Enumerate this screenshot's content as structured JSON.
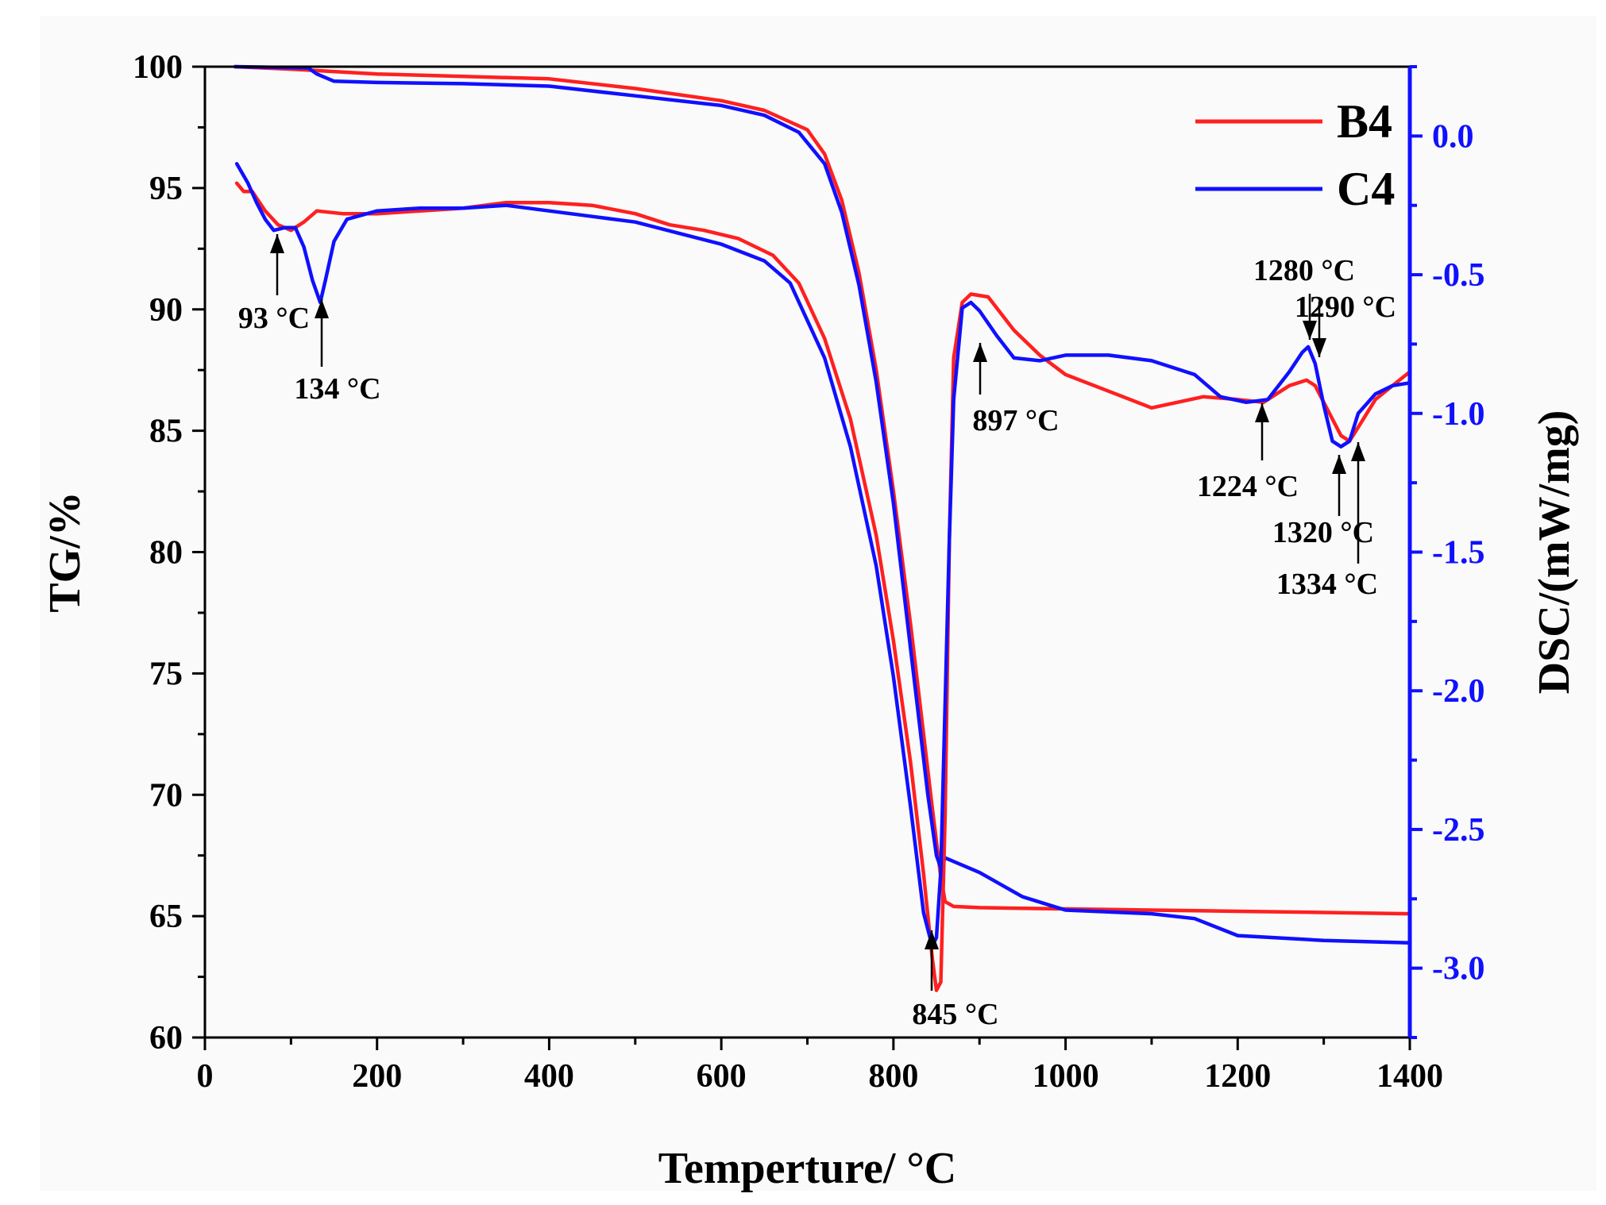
{
  "chart_data": {
    "type": "line",
    "xlabel": "Temperture/ °C",
    "ylabel_left": "TG/%",
    "ylabel_right": "DSC/(mW/mg)",
    "xlim": [
      0,
      1400
    ],
    "ylim_left": [
      60,
      100
    ],
    "ylim_right": [
      -3.25,
      0.25
    ],
    "x_ticks": [
      0,
      200,
      400,
      600,
      800,
      1000,
      1200,
      1400
    ],
    "y_left_ticks": [
      60,
      65,
      70,
      75,
      80,
      85,
      90,
      95,
      100
    ],
    "y_right_ticks": [
      "0.0",
      "-0.5",
      "-1.0",
      "-1.5",
      "-2.0",
      "-2.5",
      "-3.0"
    ],
    "colors": {
      "B4": "#ff2020",
      "C4": "#1010ff",
      "right_axis": "#1010ff"
    },
    "legend": [
      {
        "name": "B4",
        "color": "#ff2020"
      },
      {
        "name": "C4",
        "color": "#1010ff"
      }
    ],
    "series": [
      {
        "name": "B4",
        "kind": "TG",
        "axis": "left",
        "color": "#ff2020",
        "x": [
          35,
          100,
          200,
          300,
          400,
          500,
          600,
          650,
          700,
          720,
          740,
          760,
          780,
          800,
          820,
          835,
          845,
          855,
          860,
          870,
          900,
          1000,
          1100,
          1200,
          1300,
          1400
        ],
        "y": [
          100,
          99.9,
          99.7,
          99.6,
          99.5,
          99.1,
          98.6,
          98.2,
          97.4,
          96.4,
          94.5,
          91.5,
          87.5,
          82.5,
          77.0,
          72.5,
          69.5,
          66.6,
          65.6,
          65.4,
          65.35,
          65.3,
          65.25,
          65.2,
          65.15,
          65.1
        ]
      },
      {
        "name": "C4",
        "kind": "TG",
        "axis": "left",
        "color": "#1010ff",
        "x": [
          35,
          120,
          130,
          150,
          200,
          300,
          400,
          500,
          600,
          650,
          690,
          720,
          740,
          760,
          780,
          800,
          820,
          840,
          850,
          855,
          860,
          900,
          950,
          1000,
          1100,
          1150,
          1200,
          1300,
          1400
        ],
        "y": [
          100,
          99.95,
          99.7,
          99.4,
          99.35,
          99.3,
          99.2,
          98.8,
          98.4,
          98.0,
          97.3,
          96.0,
          94.0,
          91.0,
          87.0,
          82.0,
          76.0,
          70.0,
          67.5,
          67.0,
          67.4,
          66.8,
          65.8,
          65.25,
          65.1,
          64.9,
          64.2,
          64.0,
          63.9
        ]
      },
      {
        "name": "B4",
        "kind": "DSC",
        "axis": "right",
        "color": "#ff2020",
        "x": [
          37,
          45,
          55,
          70,
          85,
          100,
          115,
          130,
          160,
          200,
          250,
          300,
          350,
          400,
          450,
          500,
          540,
          580,
          620,
          660,
          690,
          720,
          750,
          780,
          800,
          820,
          835,
          845,
          850,
          855,
          860,
          865,
          870,
          880,
          890,
          910,
          940,
          970,
          1000,
          1050,
          1100,
          1160,
          1200,
          1230,
          1260,
          1280,
          1290,
          1300,
          1320,
          1330,
          1340,
          1360,
          1380,
          1400
        ],
        "y": [
          -0.17,
          -0.2,
          -0.2,
          -0.27,
          -0.32,
          -0.34,
          -0.31,
          -0.27,
          -0.28,
          -0.28,
          -0.27,
          -0.26,
          -0.24,
          -0.24,
          -0.25,
          -0.28,
          -0.32,
          -0.34,
          -0.37,
          -0.43,
          -0.53,
          -0.73,
          -1.02,
          -1.44,
          -1.82,
          -2.26,
          -2.66,
          -2.96,
          -3.08,
          -3.05,
          -2.45,
          -1.45,
          -0.8,
          -0.6,
          -0.57,
          -0.58,
          -0.7,
          -0.79,
          -0.86,
          -0.92,
          -0.98,
          -0.94,
          -0.95,
          -0.96,
          -0.9,
          -0.88,
          -0.9,
          -0.96,
          -1.08,
          -1.1,
          -1.05,
          -0.95,
          -0.9,
          -0.85
        ]
      },
      {
        "name": "C4",
        "kind": "DSC",
        "axis": "right",
        "color": "#1010ff",
        "x": [
          37,
          50,
          60,
          70,
          80,
          93,
          105,
          115,
          125,
          134,
          140,
          150,
          165,
          200,
          250,
          300,
          350,
          400,
          450,
          500,
          550,
          600,
          650,
          680,
          720,
          750,
          780,
          800,
          820,
          835,
          845,
          850,
          855,
          860,
          865,
          870,
          880,
          890,
          900,
          920,
          940,
          970,
          1000,
          1050,
          1100,
          1150,
          1180,
          1210,
          1235,
          1260,
          1275,
          1282,
          1290,
          1300,
          1310,
          1320,
          1330,
          1340,
          1360,
          1380,
          1400
        ],
        "y": [
          -0.1,
          -0.17,
          -0.24,
          -0.3,
          -0.34,
          -0.33,
          -0.33,
          -0.4,
          -0.52,
          -0.6,
          -0.52,
          -0.38,
          -0.3,
          -0.27,
          -0.26,
          -0.26,
          -0.25,
          -0.27,
          -0.29,
          -0.31,
          -0.35,
          -0.39,
          -0.45,
          -0.53,
          -0.8,
          -1.12,
          -1.55,
          -1.95,
          -2.42,
          -2.8,
          -2.92,
          -2.89,
          -2.65,
          -2.05,
          -1.45,
          -0.95,
          -0.62,
          -0.6,
          -0.63,
          -0.72,
          -0.8,
          -0.81,
          -0.79,
          -0.79,
          -0.81,
          -0.86,
          -0.94,
          -0.96,
          -0.95,
          -0.85,
          -0.78,
          -0.76,
          -0.82,
          -0.97,
          -1.1,
          -1.12,
          -1.1,
          -1.0,
          -0.93,
          -0.9,
          -0.89
        ]
      }
    ],
    "annotations": [
      {
        "label": "93 °C",
        "x": 80,
        "series": "DSC",
        "direction": "up"
      },
      {
        "label": "134 °C",
        "x": 134,
        "series": "DSC",
        "direction": "up"
      },
      {
        "label": "845 °C",
        "x": 845,
        "series": "DSC",
        "direction": "up"
      },
      {
        "label": "897 °C",
        "x": 900,
        "series": "DSC",
        "direction": "up"
      },
      {
        "label": "1224 °C",
        "x": 1224,
        "series": "DSC",
        "direction": "up"
      },
      {
        "label": "1280 °C",
        "x": 1280,
        "series": "DSC",
        "direction": "down"
      },
      {
        "label": "1290 °C",
        "x": 1290,
        "series": "DSC",
        "direction": "down"
      },
      {
        "label": "1320 °C",
        "x": 1318,
        "series": "DSC",
        "direction": "up"
      },
      {
        "label": "1334 °C",
        "x": 1340,
        "series": "DSC",
        "direction": "up"
      }
    ]
  }
}
